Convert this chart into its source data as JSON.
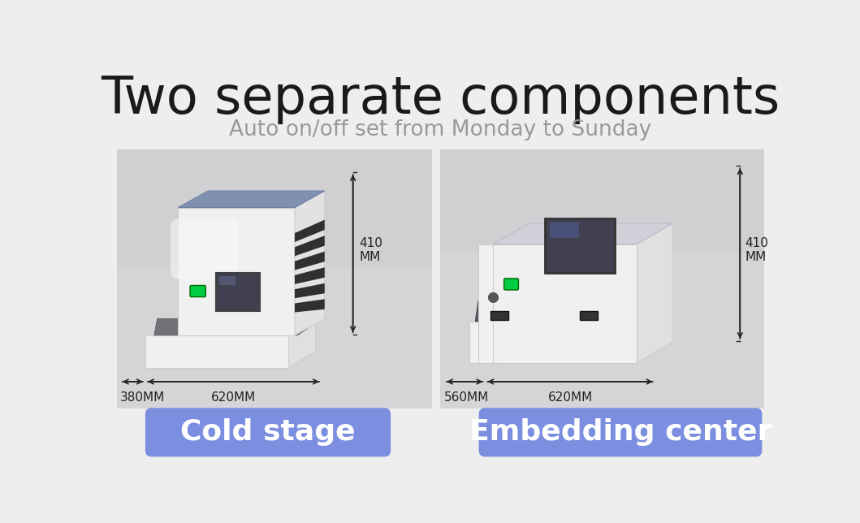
{
  "title": "Two separate components",
  "subtitle": "Auto on/off set from Monday to Sunday",
  "title_fontsize": 46,
  "subtitle_fontsize": 19,
  "title_color": "#1a1a1a",
  "subtitle_color": "#999999",
  "bg_color": "#eeeeee",
  "panel_bg_left": "#d5d5d8",
  "panel_bg_right": "#d5d5d8",
  "left_label": "Cold stage",
  "right_label": "Embedding center",
  "button_color": "#7b8ee0",
  "button_text_color": "#ffffff",
  "button_fontsize": 26,
  "white_body": "#f0f0f0",
  "white_side": "#e0e0e0",
  "white_top": "#d8d8dc",
  "blue_top": "#8090b0",
  "dark_plate": "#707278",
  "screen_color": "#404050",
  "green_btn": "#00cc44",
  "vent_color": "#303030",
  "dim_color": "#222222"
}
